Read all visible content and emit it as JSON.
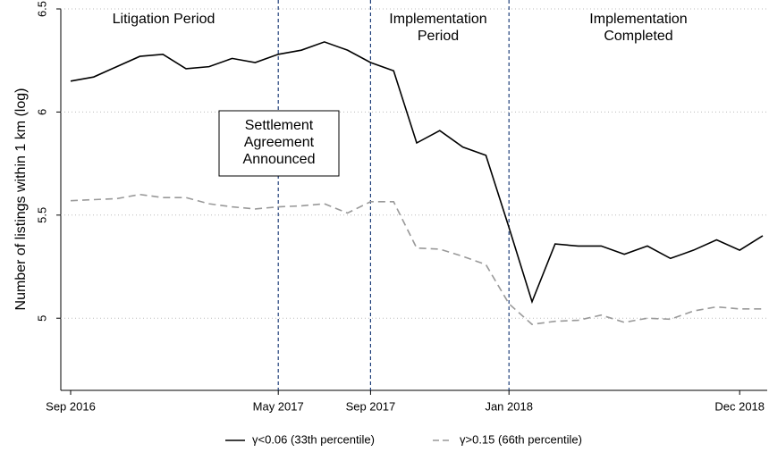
{
  "chart_data": {
    "type": "line",
    "y_label": "Number of listings within 1 km (log)",
    "categories": [
      "Sep 2016",
      null,
      null,
      null,
      null,
      null,
      null,
      null,
      null,
      "May 2017",
      null,
      null,
      null,
      "Sep 2017",
      null,
      null,
      null,
      null,
      null,
      "Jan 2018",
      null,
      null,
      null,
      null,
      null,
      null,
      null,
      null,
      null,
      "Dec 2018",
      null
    ],
    "series": [
      {
        "name": "γ<0.06 (33th percentile)",
        "color": "#000000",
        "dash": "solid",
        "values": [
          6.15,
          6.17,
          6.22,
          6.27,
          6.28,
          6.21,
          6.22,
          6.26,
          6.24,
          6.28,
          6.3,
          6.34,
          6.3,
          6.24,
          6.2,
          5.85,
          5.91,
          5.83,
          5.79,
          5.44,
          5.08,
          5.36,
          5.35,
          5.35,
          5.31,
          5.35,
          5.29,
          5.33,
          5.38,
          5.33,
          5.4
        ]
      },
      {
        "name": "γ>0.15 (66th percentile)",
        "color": "#999999",
        "dash": "dashed",
        "values": [
          5.57,
          5.575,
          5.58,
          5.6,
          5.585,
          5.585,
          5.555,
          5.54,
          5.53,
          5.54,
          5.545,
          5.555,
          5.51,
          5.565,
          5.565,
          5.34,
          5.335,
          5.3,
          5.26,
          5.07,
          4.97,
          4.985,
          4.99,
          5.015,
          4.98,
          5.0,
          4.995,
          5.035,
          5.055,
          5.045,
          5.045
        ]
      }
    ],
    "ylim": [
      4.65,
      6.5
    ],
    "yticks": [
      5,
      5.5,
      6,
      6.5
    ],
    "grid": true,
    "vlines": [
      9,
      13,
      19
    ],
    "vline_color": "#1f3f7a",
    "annotations": {
      "litigation": [
        "Litigation Period"
      ],
      "implementation": [
        "Implementation",
        "Period"
      ],
      "completed": [
        "Implementation",
        "Completed"
      ],
      "settlement": [
        "Settlement",
        "Agreement",
        "Announced"
      ]
    },
    "legend": "bottom"
  }
}
